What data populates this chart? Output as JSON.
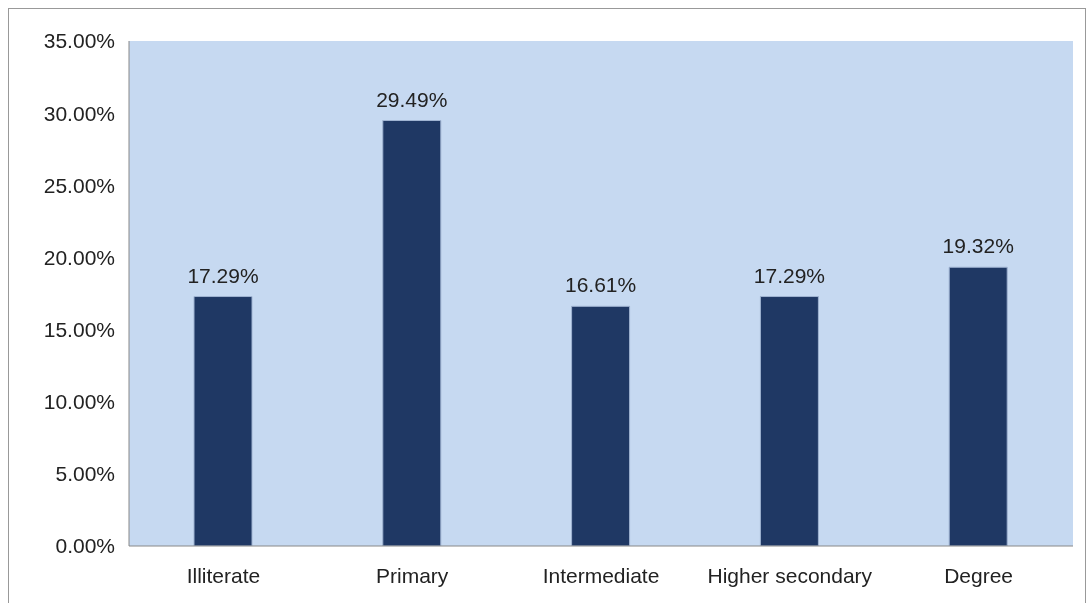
{
  "chart_data": {
    "type": "bar",
    "categories": [
      "Illiterate",
      "Primary",
      "Intermediate",
      "Higher secondary",
      "Degree"
    ],
    "values": [
      17.29,
      29.49,
      16.61,
      17.29,
      19.32
    ],
    "value_labels": [
      "17.29%",
      "29.49%",
      "16.61%",
      "17.29%",
      "19.32%"
    ],
    "color": "#1f3864",
    "ylim": [
      0,
      35
    ],
    "yticks": [
      {
        "value": 0,
        "label": "0.00%"
      },
      {
        "value": 5,
        "label": "5.00%"
      },
      {
        "value": 10,
        "label": "10.00%"
      },
      {
        "value": 15,
        "label": "15.00%"
      },
      {
        "value": 20,
        "label": "20.00%"
      },
      {
        "value": 25,
        "label": "25.00%"
      },
      {
        "value": 30,
        "label": "30.00%"
      },
      {
        "value": 35,
        "label": "35.00%"
      }
    ],
    "grid": false,
    "legend": false
  }
}
